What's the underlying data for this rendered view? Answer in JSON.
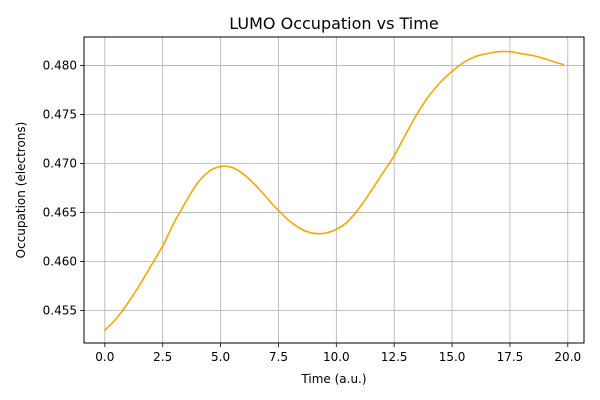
{
  "chart_data": {
    "type": "line",
    "title": "LUMO Occupation vs Time",
    "xlabel": "Time (a.u.)",
    "ylabel": "Occupation (electrons)",
    "xlim": [
      -0.9,
      20.7
    ],
    "ylim": [
      0.4517,
      0.4829
    ],
    "x_ticks": [
      0.0,
      2.5,
      5.0,
      7.5,
      10.0,
      12.5,
      15.0,
      17.5,
      20.0
    ],
    "x_tick_labels": [
      "0.0",
      "2.5",
      "5.0",
      "7.5",
      "10.0",
      "12.5",
      "15.0",
      "17.5",
      "20.0"
    ],
    "y_ticks": [
      0.455,
      0.46,
      0.465,
      0.47,
      0.475,
      0.48
    ],
    "y_tick_labels": [
      "0.455",
      "0.460",
      "0.465",
      "0.470",
      "0.475",
      "0.480"
    ],
    "grid": true,
    "series": [
      {
        "color": "#ffa500",
        "x": [
          0.0,
          0.5,
          1.0,
          1.5,
          2.0,
          2.5,
          3.0,
          3.5,
          4.0,
          4.5,
          5.0,
          5.5,
          6.0,
          6.5,
          7.0,
          7.5,
          8.0,
          8.5,
          9.0,
          9.5,
          10.0,
          10.5,
          11.0,
          11.5,
          12.0,
          12.5,
          13.0,
          13.5,
          14.0,
          14.5,
          15.0,
          15.5,
          16.0,
          16.5,
          17.0,
          17.5,
          18.0,
          18.5,
          19.0,
          19.5,
          19.8
        ],
        "y": [
          0.453,
          0.4542,
          0.4558,
          0.4576,
          0.4596,
          0.4616,
          0.464,
          0.4661,
          0.468,
          0.4692,
          0.4697,
          0.4696,
          0.4689,
          0.4678,
          0.4665,
          0.4652,
          0.4641,
          0.4633,
          0.4629,
          0.4629,
          0.4633,
          0.4641,
          0.4655,
          0.4672,
          0.469,
          0.4708,
          0.473,
          0.4751,
          0.4769,
          0.4783,
          0.4794,
          0.4803,
          0.4809,
          0.4812,
          0.4814,
          0.4814,
          0.4812,
          0.481,
          0.4807,
          0.4803,
          0.4801
        ]
      }
    ]
  }
}
